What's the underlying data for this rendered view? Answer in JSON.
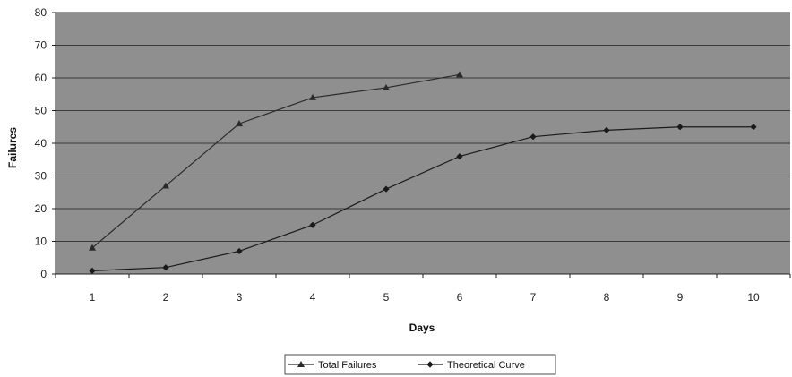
{
  "chart_data": {
    "type": "line",
    "title": "",
    "xlabel": "Days",
    "ylabel": "Failures",
    "categories": [
      "1",
      "2",
      "3",
      "4",
      "5",
      "6",
      "7",
      "8",
      "9",
      "10"
    ],
    "x": [
      1,
      2,
      3,
      4,
      5,
      6,
      7,
      8,
      9,
      10
    ],
    "ylim": [
      0,
      80
    ],
    "yticks": [
      0,
      10,
      20,
      30,
      40,
      50,
      60,
      70,
      80
    ],
    "grid": true,
    "legend_position": "bottom",
    "plot_background": "#8f8f8f",
    "series": [
      {
        "name": "Total Failures",
        "marker": "triangle",
        "color": "#2a2a2a",
        "x": [
          1,
          2,
          3,
          4,
          5,
          6
        ],
        "values": [
          8,
          27,
          46,
          54,
          57,
          61
        ]
      },
      {
        "name": "Theoretical Curve",
        "marker": "diamond",
        "color": "#1a1a1a",
        "x": [
          1,
          2,
          3,
          4,
          5,
          6,
          7,
          8,
          9,
          10
        ],
        "values": [
          1,
          2,
          7,
          15,
          26,
          36,
          42,
          44,
          45,
          45
        ]
      }
    ]
  }
}
